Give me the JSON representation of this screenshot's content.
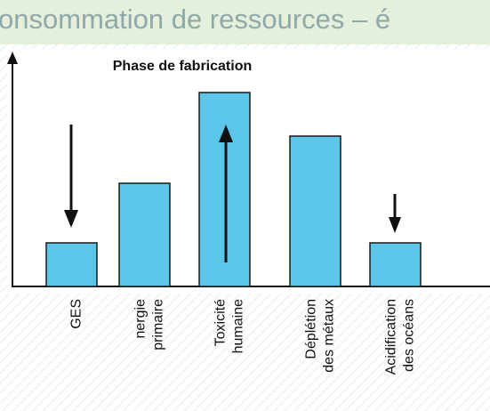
{
  "slide_title": "onsommation de ressources – é",
  "chart_data": {
    "type": "bar",
    "title": "Phase de fabrication",
    "categories": [
      [
        "GES"
      ],
      [
        "nergie",
        "primaire"
      ],
      [
        "Toxicité",
        "humaine"
      ],
      [
        "Déplétion",
        "des métaux"
      ],
      [
        "Acidification",
        "des océans"
      ]
    ],
    "values": [
      49,
      116,
      218,
      169,
      49
    ],
    "color": "#5bc5ea",
    "ylim": [
      0,
      260
    ]
  }
}
